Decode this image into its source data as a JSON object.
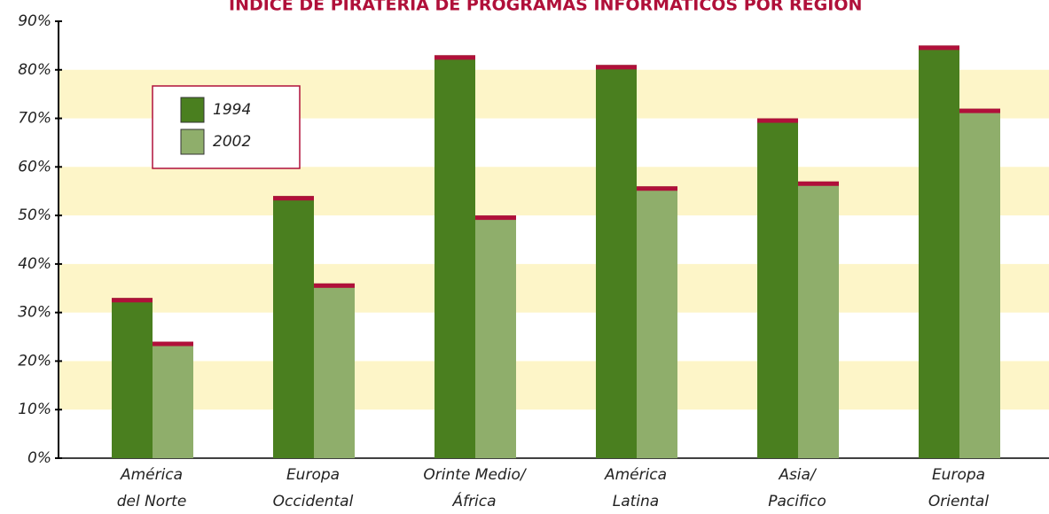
{
  "chart_data": {
    "type": "bar",
    "title": "ÍNDICE DE PIRATERÍA DE PROGRAMAS INFORMÁTICOS POR REGIÓN",
    "categories": [
      [
        "América",
        "del Norte"
      ],
      [
        "Europa",
        "Occidental"
      ],
      [
        "Orinte Medio/",
        "África"
      ],
      [
        "América",
        "Latina"
      ],
      [
        "Asia/",
        "Pacifico"
      ],
      [
        "Europa",
        "Oriental"
      ]
    ],
    "series": [
      {
        "name": "1994",
        "color": "#4a7f1f",
        "values": [
          33,
          54,
          83,
          81,
          70,
          85
        ]
      },
      {
        "name": "2002",
        "color": "#8fae6b",
        "values": [
          24,
          36,
          50,
          56,
          57,
          72
        ]
      }
    ],
    "cap_color": "#b0103a",
    "band_color": "#fdf5c8",
    "ylim": [
      0,
      90
    ],
    "yticks": [
      {
        "value": 0,
        "label": "0%"
      },
      {
        "value": 10,
        "label": "10%"
      },
      {
        "value": 20,
        "label": "20%"
      },
      {
        "value": 30,
        "label": "30%"
      },
      {
        "value": 40,
        "label": "40%"
      },
      {
        "value": 50,
        "label": "50%"
      },
      {
        "value": 60,
        "label": "60%"
      },
      {
        "value": 70,
        "label": "70%"
      },
      {
        "value": 80,
        "label": "80%"
      },
      {
        "value": 90,
        "label": "90%"
      }
    ],
    "legend": "upper left"
  }
}
